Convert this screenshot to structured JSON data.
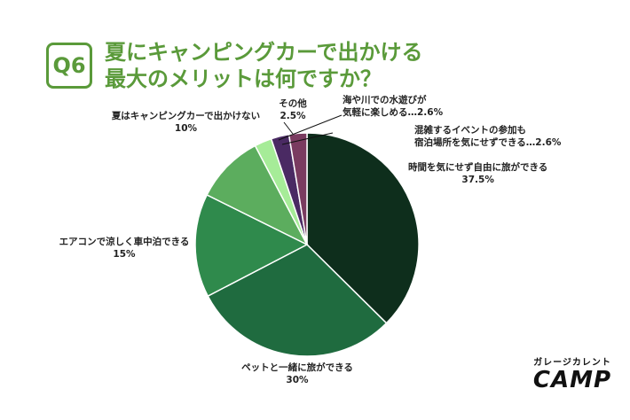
{
  "header": {
    "badge": "Q6",
    "title_line1": "夏にキャンピングカーで出かける",
    "title_line2": "最大のメリットは何ですか？"
  },
  "chart_data": {
    "type": "pie",
    "start_angle_deg": 0,
    "direction": "clockwise",
    "slices": [
      {
        "label": "時間を気にせず自由に旅ができる",
        "value": 37.5,
        "value_text": "37.5%",
        "color": "#0e2e1c"
      },
      {
        "label": "ペットと一緒に旅ができる",
        "value": 30,
        "value_text": "30%",
        "color": "#1f6b3f"
      },
      {
        "label": "エアコンで涼しく車中泊できる",
        "value": 15,
        "value_text": "15%",
        "color": "#2f8a4c"
      },
      {
        "label": "夏はキャンピングカーで出かけない",
        "value": 10,
        "value_text": "10%",
        "color": "#5cad5e"
      },
      {
        "label": "その他",
        "value": 2.5,
        "value_text": "2.5%",
        "color": "#a6ec98"
      },
      {
        "label": "海や川での水遊びが気軽に楽しめる",
        "value": 2.6,
        "value_text": "2.6%",
        "color": "#4a2a63"
      },
      {
        "label": "混雑するイベントの参加も宿泊場所を気にせずできる",
        "value": 2.6,
        "value_text": "2.6%",
        "color": "#7a3b60"
      }
    ],
    "labels": {
      "free_travel": {
        "line1": "時間を気にせず自由に旅ができる",
        "line2": "37.5%"
      },
      "pet": {
        "line1": "ペットと一緒に旅ができる",
        "line2": "30%"
      },
      "aircon": {
        "line1": "エアコンで涼しく車中泊できる",
        "line2": "15%"
      },
      "no_go": {
        "line1": "夏はキャンピングカーで出かけない",
        "line2": "10%"
      },
      "other": {
        "line1": "その他",
        "line2": "2.5%"
      },
      "water": {
        "line1": "海や川での水遊びが",
        "line2": "気軽に楽しめる…2.6%"
      },
      "event": {
        "line1": "混雑するイベントの参加も",
        "line2": "宿泊場所を気にせずできる…2.6%"
      }
    }
  },
  "brand": {
    "top": "ガレージカレント",
    "main": "CAMP"
  }
}
